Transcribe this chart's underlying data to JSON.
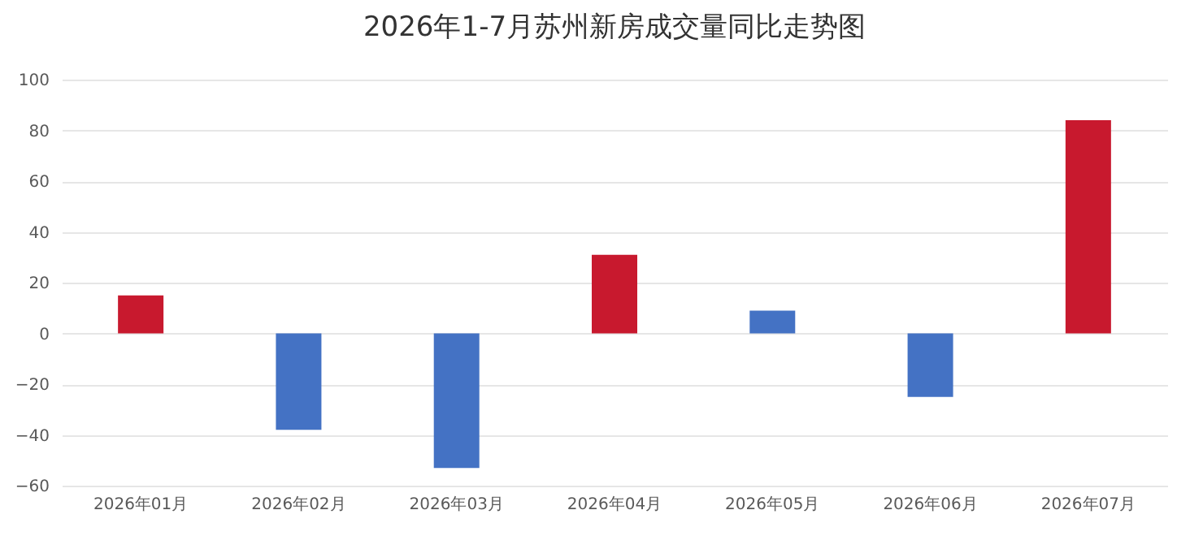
{
  "chart_data": {
    "type": "bar",
    "title": "2026年1-7月苏州新房成交量同比走势图",
    "categories": [
      "2026年01月",
      "2026年02月",
      "2026年03月",
      "2026年04月",
      "2026年05月",
      "2026年06月",
      "2026年07月"
    ],
    "values": [
      15,
      -38,
      -53,
      31,
      9,
      -25,
      84
    ],
    "colors": [
      "#c8192e",
      "#4472c4",
      "#4472c4",
      "#c8192e",
      "#4472c4",
      "#4472c4",
      "#c8192e"
    ],
    "ylim": [
      -60,
      100
    ],
    "yticks": [
      -60,
      -40,
      -20,
      0,
      20,
      40,
      60,
      80,
      100
    ],
    "grid": "y"
  }
}
